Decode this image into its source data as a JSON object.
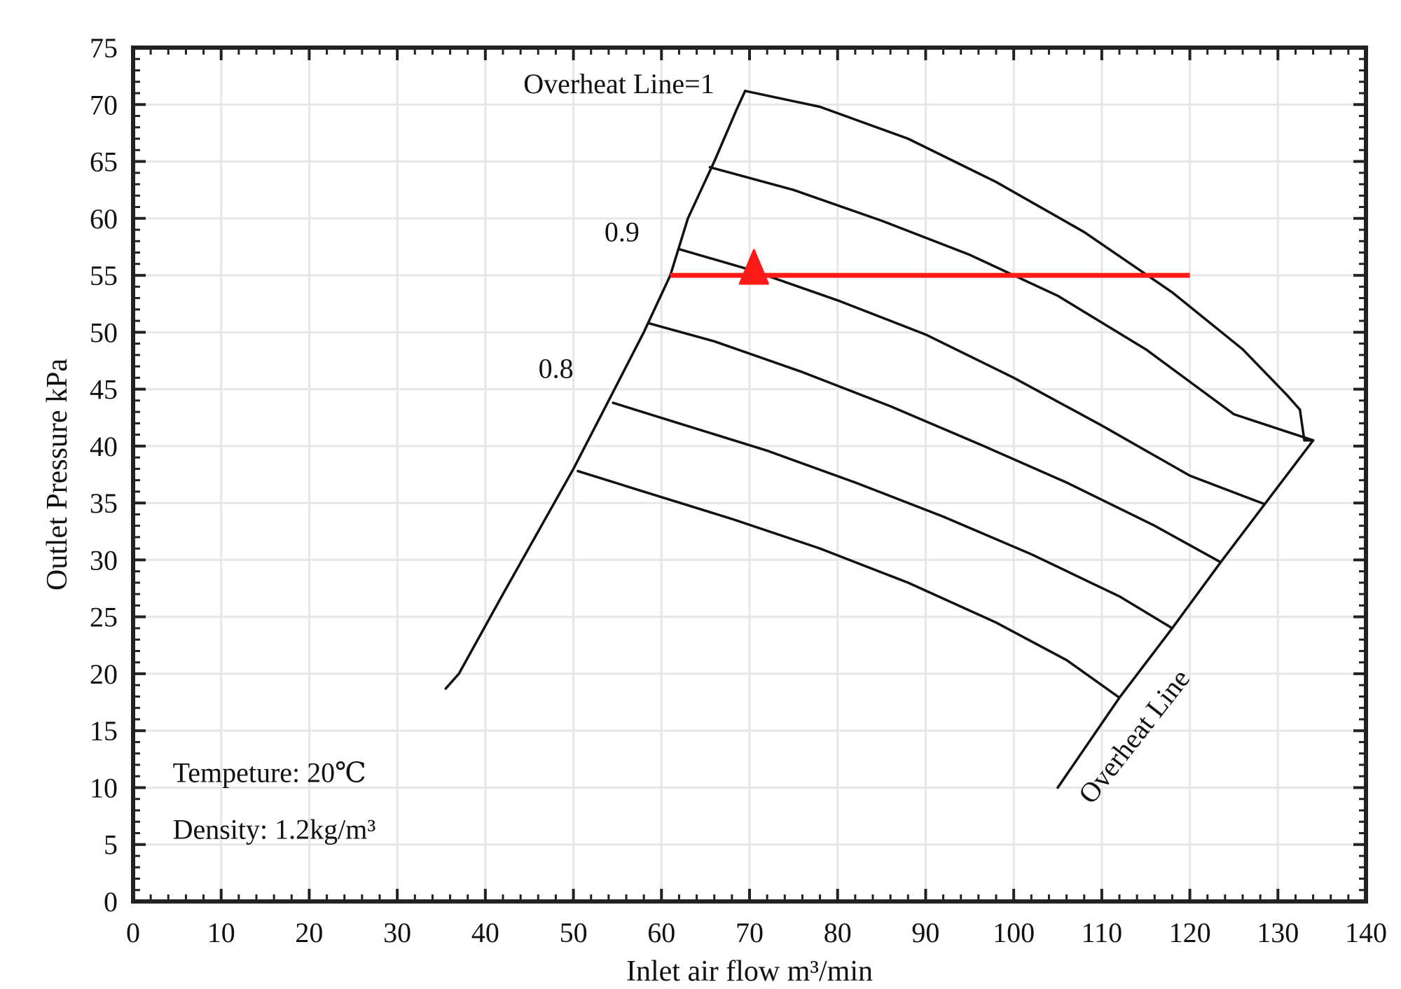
{
  "chart_data": {
    "type": "line",
    "title": "",
    "xlabel": "Inlet air flow m³/min",
    "ylabel": "Outlet Pressure kPa",
    "xlim": [
      0,
      140
    ],
    "ylim": [
      0,
      75
    ],
    "xticks": [
      0,
      10,
      20,
      30,
      40,
      50,
      60,
      70,
      80,
      90,
      100,
      110,
      120,
      130,
      140
    ],
    "yticks": [
      0,
      5,
      10,
      15,
      20,
      25,
      30,
      35,
      40,
      45,
      50,
      55,
      60,
      65,
      70,
      75
    ],
    "grid": true,
    "colors": {
      "curve": "#111111",
      "operating": "#ff1a1a",
      "grid": "#e6e6e6"
    },
    "series": [
      {
        "name": "surge-line",
        "points": [
          [
            35.5,
            18.7
          ],
          [
            37,
            20
          ],
          [
            42,
            27
          ],
          [
            46,
            32.5
          ],
          [
            50,
            38
          ],
          [
            54,
            44
          ],
          [
            58,
            50
          ],
          [
            61,
            55
          ],
          [
            63,
            60
          ],
          [
            66,
            65
          ],
          [
            68.5,
            69.5
          ],
          [
            69.5,
            71.2
          ]
        ]
      },
      {
        "name": "top-curve",
        "points": [
          [
            69.5,
            71.2
          ],
          [
            78,
            69.8
          ],
          [
            88,
            67
          ],
          [
            98,
            63.2
          ],
          [
            108,
            58.8
          ],
          [
            118,
            53.5
          ],
          [
            126,
            48.5
          ],
          [
            131,
            44.5
          ],
          [
            132.5,
            43.2
          ]
        ]
      },
      {
        "name": "right-edge",
        "points": [
          [
            132.5,
            43.2
          ],
          [
            133,
            40.5
          ],
          [
            134,
            40.5
          ]
        ]
      },
      {
        "name": "overheat-line",
        "points": [
          [
            105,
            10
          ],
          [
            112,
            17.9
          ],
          [
            118,
            24
          ],
          [
            123.5,
            29.8
          ],
          [
            128.5,
            34.9
          ],
          [
            134,
            40.5
          ]
        ]
      },
      {
        "name": "curve-0.95",
        "points": [
          [
            65.5,
            64.5
          ],
          [
            75,
            62.5
          ],
          [
            85,
            59.8
          ],
          [
            95,
            56.8
          ],
          [
            105,
            53.2
          ],
          [
            115,
            48.5
          ],
          [
            125,
            42.8
          ],
          [
            134,
            40.5
          ]
        ]
      },
      {
        "name": "curve-0.9",
        "points": [
          [
            62,
            57.3
          ],
          [
            70,
            55.5
          ],
          [
            80,
            52.8
          ],
          [
            90,
            49.8
          ],
          [
            100,
            46
          ],
          [
            110,
            41.8
          ],
          [
            120,
            37.4
          ],
          [
            128.5,
            34.9
          ]
        ]
      },
      {
        "name": "curve-0.85",
        "points": [
          [
            58.5,
            50.8
          ],
          [
            66,
            49.2
          ],
          [
            76,
            46.5
          ],
          [
            86,
            43.5
          ],
          [
            96,
            40.2
          ],
          [
            106,
            36.8
          ],
          [
            116,
            33
          ],
          [
            123.5,
            29.8
          ]
        ]
      },
      {
        "name": "curve-0.8",
        "points": [
          [
            54.5,
            43.8
          ],
          [
            62,
            42
          ],
          [
            72,
            39.6
          ],
          [
            82,
            36.8
          ],
          [
            92,
            33.8
          ],
          [
            102,
            30.5
          ],
          [
            112,
            26.8
          ],
          [
            118,
            24
          ]
        ]
      },
      {
        "name": "curve-0.75",
        "points": [
          [
            50.5,
            37.8
          ],
          [
            58,
            36
          ],
          [
            68,
            33.6
          ],
          [
            78,
            31
          ],
          [
            88,
            28
          ],
          [
            98,
            24.5
          ],
          [
            106,
            21.2
          ],
          [
            112,
            17.9
          ]
        ]
      }
    ],
    "operating_line": {
      "y": 55,
      "x_start": 61,
      "x_end": 120
    },
    "operating_point": {
      "x": 70.5,
      "y": 55.5
    },
    "annotations": [
      {
        "text": "Overheat Line=1",
        "x": 66,
        "y": 71,
        "anchor": "end"
      },
      {
        "text": "0.9",
        "x": 57.5,
        "y": 58,
        "anchor": "end"
      },
      {
        "text": "0.8",
        "x": 50,
        "y": 46,
        "anchor": "end"
      },
      {
        "text": "Overheat Line",
        "x": 114.5,
        "y": 14,
        "anchor": "middle",
        "rotate": -52
      },
      {
        "text": "Tempeture: 20℃",
        "x": 4.5,
        "y": 10.5,
        "anchor": "start"
      },
      {
        "text": "Density: 1.2kg/m³",
        "x": 4.5,
        "y": 5.5,
        "anchor": "start"
      }
    ]
  }
}
